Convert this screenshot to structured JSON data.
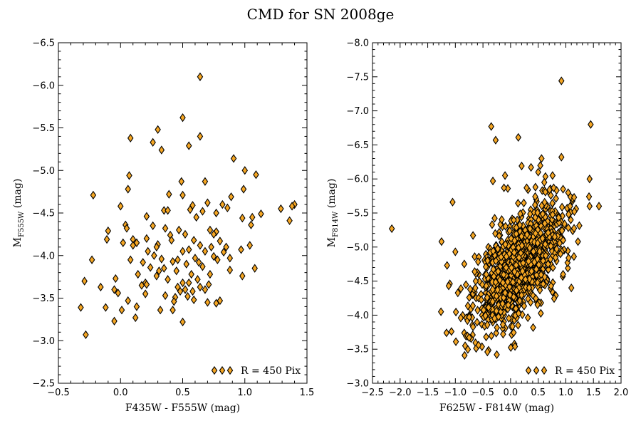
{
  "title": "CMD for SN 2008ge",
  "marker_color": "#f5a623",
  "chart_data": [
    {
      "type": "scatter",
      "xlabel": "F435W - F555W (mag)",
      "ylabel_main": "M",
      "ylabel_sub": "F555W",
      "ylabel_unit": " (mag)",
      "xlim": [
        -0.5,
        1.5
      ],
      "ylim": [
        -2.5,
        -6.5
      ],
      "xticks": [
        "−0.5",
        "0.0",
        "0.5",
        "1.0",
        "1.5"
      ],
      "xtick_values": [
        -0.5,
        0.0,
        0.5,
        1.0,
        1.5
      ],
      "yticks": [
        "−2.5",
        "−3.0",
        "−3.5",
        "−4.0",
        "−4.5",
        "−5.0",
        "−5.5",
        "−6.0",
        "−6.5"
      ],
      "ytick_values": [
        -2.5,
        -3.0,
        -3.5,
        -4.0,
        -4.5,
        -5.0,
        -5.5,
        -6.0,
        -6.5
      ],
      "legend": "R = 450 Pix",
      "legend_position": "lower-right",
      "points_seed": 7,
      "points": [
        [
          0.64,
          -6.1
        ],
        [
          0.5,
          -5.62
        ],
        [
          0.3,
          -5.48
        ],
        [
          0.64,
          -5.4
        ],
        [
          0.08,
          -5.38
        ],
        [
          0.26,
          -5.33
        ],
        [
          0.55,
          -5.29
        ],
        [
          0.33,
          -5.24
        ],
        [
          0.91,
          -5.14
        ],
        [
          0.07,
          -4.94
        ],
        [
          1.0,
          -5.0
        ],
        [
          1.09,
          -4.95
        ],
        [
          0.49,
          -4.87
        ],
        [
          0.68,
          -4.87
        ],
        [
          0.06,
          -4.78
        ],
        [
          0.99,
          -4.78
        ],
        [
          -0.22,
          -4.71
        ],
        [
          0.5,
          -4.71
        ],
        [
          0.39,
          -4.72
        ],
        [
          0.89,
          -4.69
        ],
        [
          0.7,
          -4.62
        ],
        [
          0.58,
          -4.59
        ],
        [
          0.82,
          -4.6
        ],
        [
          0.86,
          -4.56
        ],
        [
          0.0,
          -4.58
        ],
        [
          0.35,
          -4.53
        ],
        [
          0.38,
          -4.53
        ],
        [
          0.56,
          -4.54
        ],
        [
          0.66,
          -4.52
        ],
        [
          1.4,
          -4.6
        ],
        [
          1.38,
          -4.58
        ],
        [
          1.29,
          -4.55
        ],
        [
          0.77,
          -4.5
        ],
        [
          1.13,
          -4.49
        ],
        [
          0.21,
          -4.46
        ],
        [
          0.61,
          -4.45
        ],
        [
          1.06,
          -4.45
        ],
        [
          0.98,
          -4.44
        ],
        [
          1.36,
          -4.41
        ],
        [
          1.05,
          -4.36
        ],
        [
          0.04,
          -4.36
        ],
        [
          0.26,
          -4.35
        ],
        [
          0.36,
          -4.32
        ],
        [
          0.72,
          -4.3
        ],
        [
          0.47,
          -4.3
        ],
        [
          0.05,
          -4.32
        ],
        [
          0.77,
          -4.28
        ],
        [
          -0.1,
          -4.29
        ],
        [
          0.4,
          -4.24
        ],
        [
          0.52,
          -4.25
        ],
        [
          0.75,
          -4.25
        ],
        [
          0.1,
          -4.19
        ],
        [
          -0.11,
          -4.19
        ],
        [
          0.21,
          -4.2
        ],
        [
          0.41,
          -4.18
        ],
        [
          0.59,
          -4.18
        ],
        [
          0.8,
          -4.17
        ],
        [
          1.04,
          -4.12
        ],
        [
          0.02,
          -4.15
        ],
        [
          0.13,
          -4.15
        ],
        [
          0.3,
          -4.13
        ],
        [
          0.64,
          -4.12
        ],
        [
          0.73,
          -4.1
        ],
        [
          0.85,
          -4.1
        ],
        [
          0.1,
          -4.12
        ],
        [
          0.29,
          -4.1
        ],
        [
          0.55,
          -4.07
        ],
        [
          0.97,
          -4.07
        ],
        [
          0.22,
          -4.05
        ],
        [
          0.5,
          -4.05
        ],
        [
          0.68,
          -4.05
        ],
        [
          0.83,
          -4.04
        ],
        [
          -0.23,
          -3.95
        ],
        [
          0.27,
          -4.0
        ],
        [
          0.33,
          -3.96
        ],
        [
          0.46,
          -3.95
        ],
        [
          0.6,
          -3.97
        ],
        [
          0.75,
          -3.99
        ],
        [
          0.88,
          -3.97
        ],
        [
          0.08,
          -3.95
        ],
        [
          0.18,
          -3.92
        ],
        [
          0.42,
          -3.93
        ],
        [
          0.63,
          -3.92
        ],
        [
          0.78,
          -3.95
        ],
        [
          0.53,
          -3.9
        ],
        [
          0.24,
          -3.86
        ],
        [
          0.35,
          -3.85
        ],
        [
          0.66,
          -3.87
        ],
        [
          1.08,
          -3.85
        ],
        [
          0.31,
          -3.82
        ],
        [
          0.45,
          -3.82
        ],
        [
          0.88,
          -3.83
        ],
        [
          0.14,
          -3.78
        ],
        [
          0.57,
          -3.78
        ],
        [
          0.72,
          -3.78
        ],
        [
          0.98,
          -3.76
        ],
        [
          -0.04,
          -3.73
        ],
        [
          0.29,
          -3.76
        ],
        [
          0.38,
          -3.72
        ],
        [
          0.62,
          -3.72
        ],
        [
          0.2,
          -3.68
        ],
        [
          0.5,
          -3.68
        ],
        [
          -0.29,
          -3.7
        ],
        [
          0.21,
          -3.66
        ],
        [
          0.55,
          -3.68
        ],
        [
          0.71,
          -3.66
        ],
        [
          0.17,
          -3.65
        ],
        [
          0.46,
          -3.63
        ],
        [
          0.52,
          -3.6
        ],
        [
          0.64,
          -3.63
        ],
        [
          0.68,
          -3.6
        ],
        [
          -0.16,
          -3.63
        ],
        [
          -0.05,
          -3.6
        ],
        [
          0.48,
          -3.58
        ],
        [
          0.58,
          -3.58
        ],
        [
          -0.02,
          -3.56
        ],
        [
          0.2,
          -3.55
        ],
        [
          0.36,
          -3.53
        ],
        [
          0.44,
          -3.51
        ],
        [
          0.54,
          -3.52
        ],
        [
          0.59,
          -3.48
        ],
        [
          0.8,
          -3.47
        ],
        [
          0.06,
          -3.47
        ],
        [
          0.43,
          -3.46
        ],
        [
          0.7,
          -3.45
        ],
        [
          0.77,
          -3.44
        ],
        [
          0.13,
          -3.4
        ],
        [
          -0.32,
          -3.39
        ],
        [
          -0.12,
          -3.39
        ],
        [
          0.32,
          -3.36
        ],
        [
          0.42,
          -3.36
        ],
        [
          0.01,
          -3.36
        ],
        [
          0.12,
          -3.27
        ],
        [
          0.5,
          -3.22
        ],
        [
          -0.05,
          -3.23
        ],
        [
          -0.28,
          -3.07
        ]
      ]
    },
    {
      "type": "scatter",
      "xlabel": "F625W - F814W (mag)",
      "ylabel_main": "M",
      "ylabel_sub": "F814W",
      "ylabel_unit": " (mag)",
      "xlim": [
        -2.5,
        2.0
      ],
      "ylim": [
        -3.0,
        -8.0
      ],
      "xticks": [
        "−2.5",
        "−2.0",
        "−1.5",
        "−1.0",
        "−0.5",
        "0.0",
        "0.5",
        "1.0",
        "1.5",
        "2.0"
      ],
      "xtick_values": [
        -2.5,
        -2.0,
        -1.5,
        -1.0,
        -0.5,
        0.0,
        0.5,
        1.0,
        1.5,
        2.0
      ],
      "yticks": [
        "−3.0",
        "−3.5",
        "−4.0",
        "−4.5",
        "−5.0",
        "−5.5",
        "−6.0",
        "−6.5",
        "−7.0",
        "−7.5",
        "−8.0"
      ],
      "ytick_values": [
        -3.0,
        -3.5,
        -4.0,
        -4.5,
        -5.0,
        -5.5,
        -6.0,
        -6.5,
        -7.0,
        -7.5,
        -8.0
      ],
      "legend": "R = 450 Pix",
      "legend_position": "lower-right",
      "points": [
        [
          0.92,
          -7.44
        ],
        [
          -0.35,
          -6.77
        ],
        [
          1.45,
          -6.8
        ],
        [
          0.14,
          -6.61
        ],
        [
          -0.27,
          -6.57
        ],
        [
          0.56,
          -6.3
        ],
        [
          0.92,
          -6.32
        ],
        [
          0.2,
          -6.19
        ],
        [
          0.37,
          -6.17
        ],
        [
          0.5,
          -6.1
        ],
        [
          0.76,
          -6.05
        ],
        [
          -0.1,
          -6.05
        ],
        [
          -0.32,
          -5.97
        ],
        [
          1.43,
          -6.0
        ],
        [
          0.61,
          -5.95
        ],
        [
          0.45,
          -5.88
        ],
        [
          -0.05,
          -5.86
        ],
        [
          -0.12,
          -5.87
        ],
        [
          0.29,
          -5.87
        ],
        [
          0.78,
          -5.87
        ],
        [
          0.95,
          -5.85
        ],
        [
          -1.05,
          -5.66
        ],
        [
          1.42,
          -5.74
        ],
        [
          1.15,
          -5.73
        ],
        [
          -2.15,
          -5.27
        ],
        [
          1.43,
          -5.6
        ],
        [
          1.6,
          -5.6
        ],
        [
          -1.25,
          -5.08
        ],
        [
          -0.68,
          -5.17
        ],
        [
          -1.0,
          -4.93
        ],
        [
          -1.15,
          -4.73
        ],
        [
          -1.1,
          -4.46
        ],
        [
          -1.12,
          -4.43
        ],
        [
          -0.9,
          -4.39
        ],
        [
          -1.26,
          -4.05
        ],
        [
          -1.16,
          -3.74
        ],
        [
          -1.07,
          -3.76
        ],
        [
          -0.99,
          -3.61
        ],
        [
          -0.75,
          -3.67
        ],
        [
          -0.58,
          -3.56
        ],
        [
          -0.42,
          -3.46
        ],
        [
          -0.25,
          -3.42
        ],
        [
          0.08,
          -3.54
        ],
        [
          1.05,
          -4.84
        ],
        [
          1.22,
          -5.08
        ],
        [
          1.05,
          -5.48
        ],
        [
          1.1,
          -4.4
        ],
        [
          0.95,
          -4.6
        ]
      ],
      "cloud": {
        "count": 1100,
        "x_mean": 0.15,
        "y_mean": -4.72,
        "x_sd": 0.42,
        "y_sd": 0.52,
        "slope": -0.55,
        "seed": 42
      }
    }
  ]
}
